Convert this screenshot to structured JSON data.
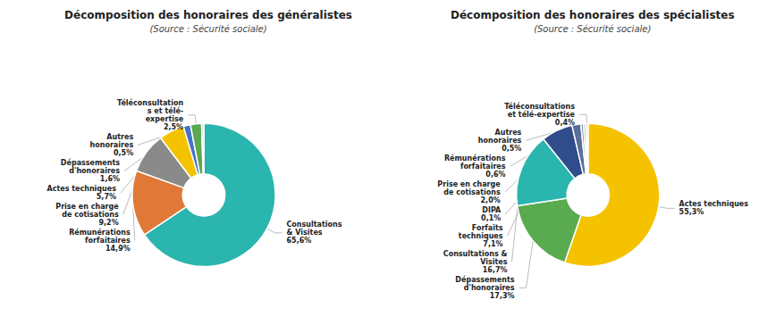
{
  "chart_data": [
    {
      "type": "pie",
      "title": "Décomposition des honoraires des généralistes",
      "subtitle": "(Source : Sécurité sociale)",
      "categories": [
        "Consultations\n& Visites",
        "Rémunérations\nforfaitaires",
        "Prise en charge\nde cotisations",
        "Actes techniques",
        "Dépassements\nd'honoraires",
        "Téléconsultation\ns et télé-\nexpertise",
        "Autres\nhonoraires"
      ],
      "values": [
        65.6,
        14.9,
        9.2,
        5.7,
        1.6,
        2.5,
        0.5
      ],
      "value_labels": [
        "65,6%",
        "14,9%",
        "9,2%",
        "5,7%",
        "1,6%",
        "2,5%",
        "0,5%"
      ],
      "colors": [
        "#2ab5af",
        "#e07838",
        "#8a8a8a",
        "#f5c200",
        "#4472c4",
        "#5aaa50",
        "#cccccc"
      ],
      "data_labels": true
    },
    {
      "type": "pie",
      "title": "Décomposition des honoraires des spécialistes",
      "subtitle": "(Source : Sécurité sociale)",
      "categories": [
        "Actes techniques",
        "Dépassements\nd'honoraires",
        "Consultations &\nVisites",
        "Forfaits\ntechniques",
        "Prise en charge\nde cotisations",
        "Rémunérations\nforfaitaires",
        "Autres\nhonoraires",
        "Téléconsultations\net télé-expertise",
        "DIPA"
      ],
      "values": [
        55.3,
        17.3,
        16.7,
        7.1,
        2.0,
        0.6,
        0.5,
        0.4,
        0.1
      ],
      "value_labels": [
        "55,3%",
        "17,3%",
        "16,7%",
        "7,1%",
        "2,0%",
        "0,6%",
        "0,5%",
        "0,4%",
        "0,1%"
      ],
      "colors": [
        "#f5c200",
        "#5aaa50",
        "#2ab5af",
        "#2e4d8a",
        "#5a6e9a",
        "#8892aa",
        "#aaaaaa",
        "#787878",
        "#b0b0c8"
      ],
      "data_labels": true
    }
  ]
}
